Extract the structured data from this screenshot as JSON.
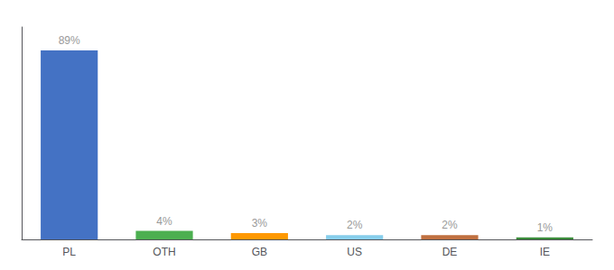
{
  "chart_data": {
    "type": "bar",
    "categories": [
      "PL",
      "OTH",
      "GB",
      "US",
      "DE",
      "IE"
    ],
    "values": [
      89,
      4,
      3,
      2,
      2,
      1
    ],
    "value_labels": [
      "89%",
      "4%",
      "3%",
      "2%",
      "2%",
      "1%"
    ],
    "colors": [
      "#4472c4",
      "#4caf50",
      "#ff9800",
      "#87ceeb",
      "#c07040",
      "#3a8c3a"
    ],
    "ylim": [
      0,
      100
    ],
    "data_labels": true,
    "tick_labels": "x",
    "grid": false
  }
}
